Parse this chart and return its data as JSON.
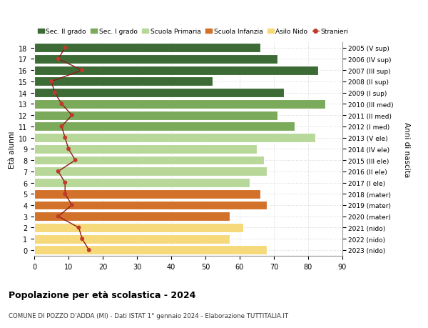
{
  "ages": [
    18,
    17,
    16,
    15,
    14,
    13,
    12,
    11,
    10,
    9,
    8,
    7,
    6,
    5,
    4,
    3,
    2,
    1,
    0
  ],
  "bar_values": [
    66,
    71,
    83,
    52,
    73,
    85,
    71,
    76,
    82,
    65,
    67,
    68,
    63,
    66,
    68,
    57,
    61,
    57,
    68
  ],
  "stranieri": [
    9,
    7,
    14,
    5,
    6,
    8,
    11,
    8,
    9,
    10,
    12,
    7,
    9,
    9,
    11,
    7,
    13,
    14,
    16
  ],
  "right_labels": [
    "2005 (V sup)",
    "2006 (IV sup)",
    "2007 (III sup)",
    "2008 (II sup)",
    "2009 (I sup)",
    "2010 (III med)",
    "2011 (II med)",
    "2012 (I med)",
    "2013 (V ele)",
    "2014 (IV ele)",
    "2015 (III ele)",
    "2016 (II ele)",
    "2017 (I ele)",
    "2018 (mater)",
    "2019 (mater)",
    "2020 (mater)",
    "2021 (nido)",
    "2022 (nido)",
    "2023 (nido)"
  ],
  "colors": {
    "sec2": "#3d6b35",
    "sec1": "#7aaa5a",
    "primaria": "#b8d89a",
    "infanzia": "#d2722a",
    "nido": "#f5d97a",
    "stranieri_line": "#8b1a1a",
    "stranieri_dot": "#c0392b"
  },
  "legend_labels": [
    "Sec. II grado",
    "Sec. I grado",
    "Scuola Primaria",
    "Scuola Infanzia",
    "Asilo Nido",
    "Stranieri"
  ],
  "title": "Popolazione per età scolastica - 2024",
  "subtitle": "COMUNE DI POZZO D'ADDA (MI) - Dati ISTAT 1° gennaio 2024 - Elaborazione TUTTITALIA.IT",
  "ylabel_left": "Età alunni",
  "ylabel_right": "Anni di nascita",
  "xlim": [
    0,
    90
  ],
  "xticks": [
    0,
    10,
    20,
    30,
    40,
    50,
    60,
    70,
    80,
    90
  ],
  "figsize": [
    6.0,
    4.6
  ],
  "dpi": 100
}
